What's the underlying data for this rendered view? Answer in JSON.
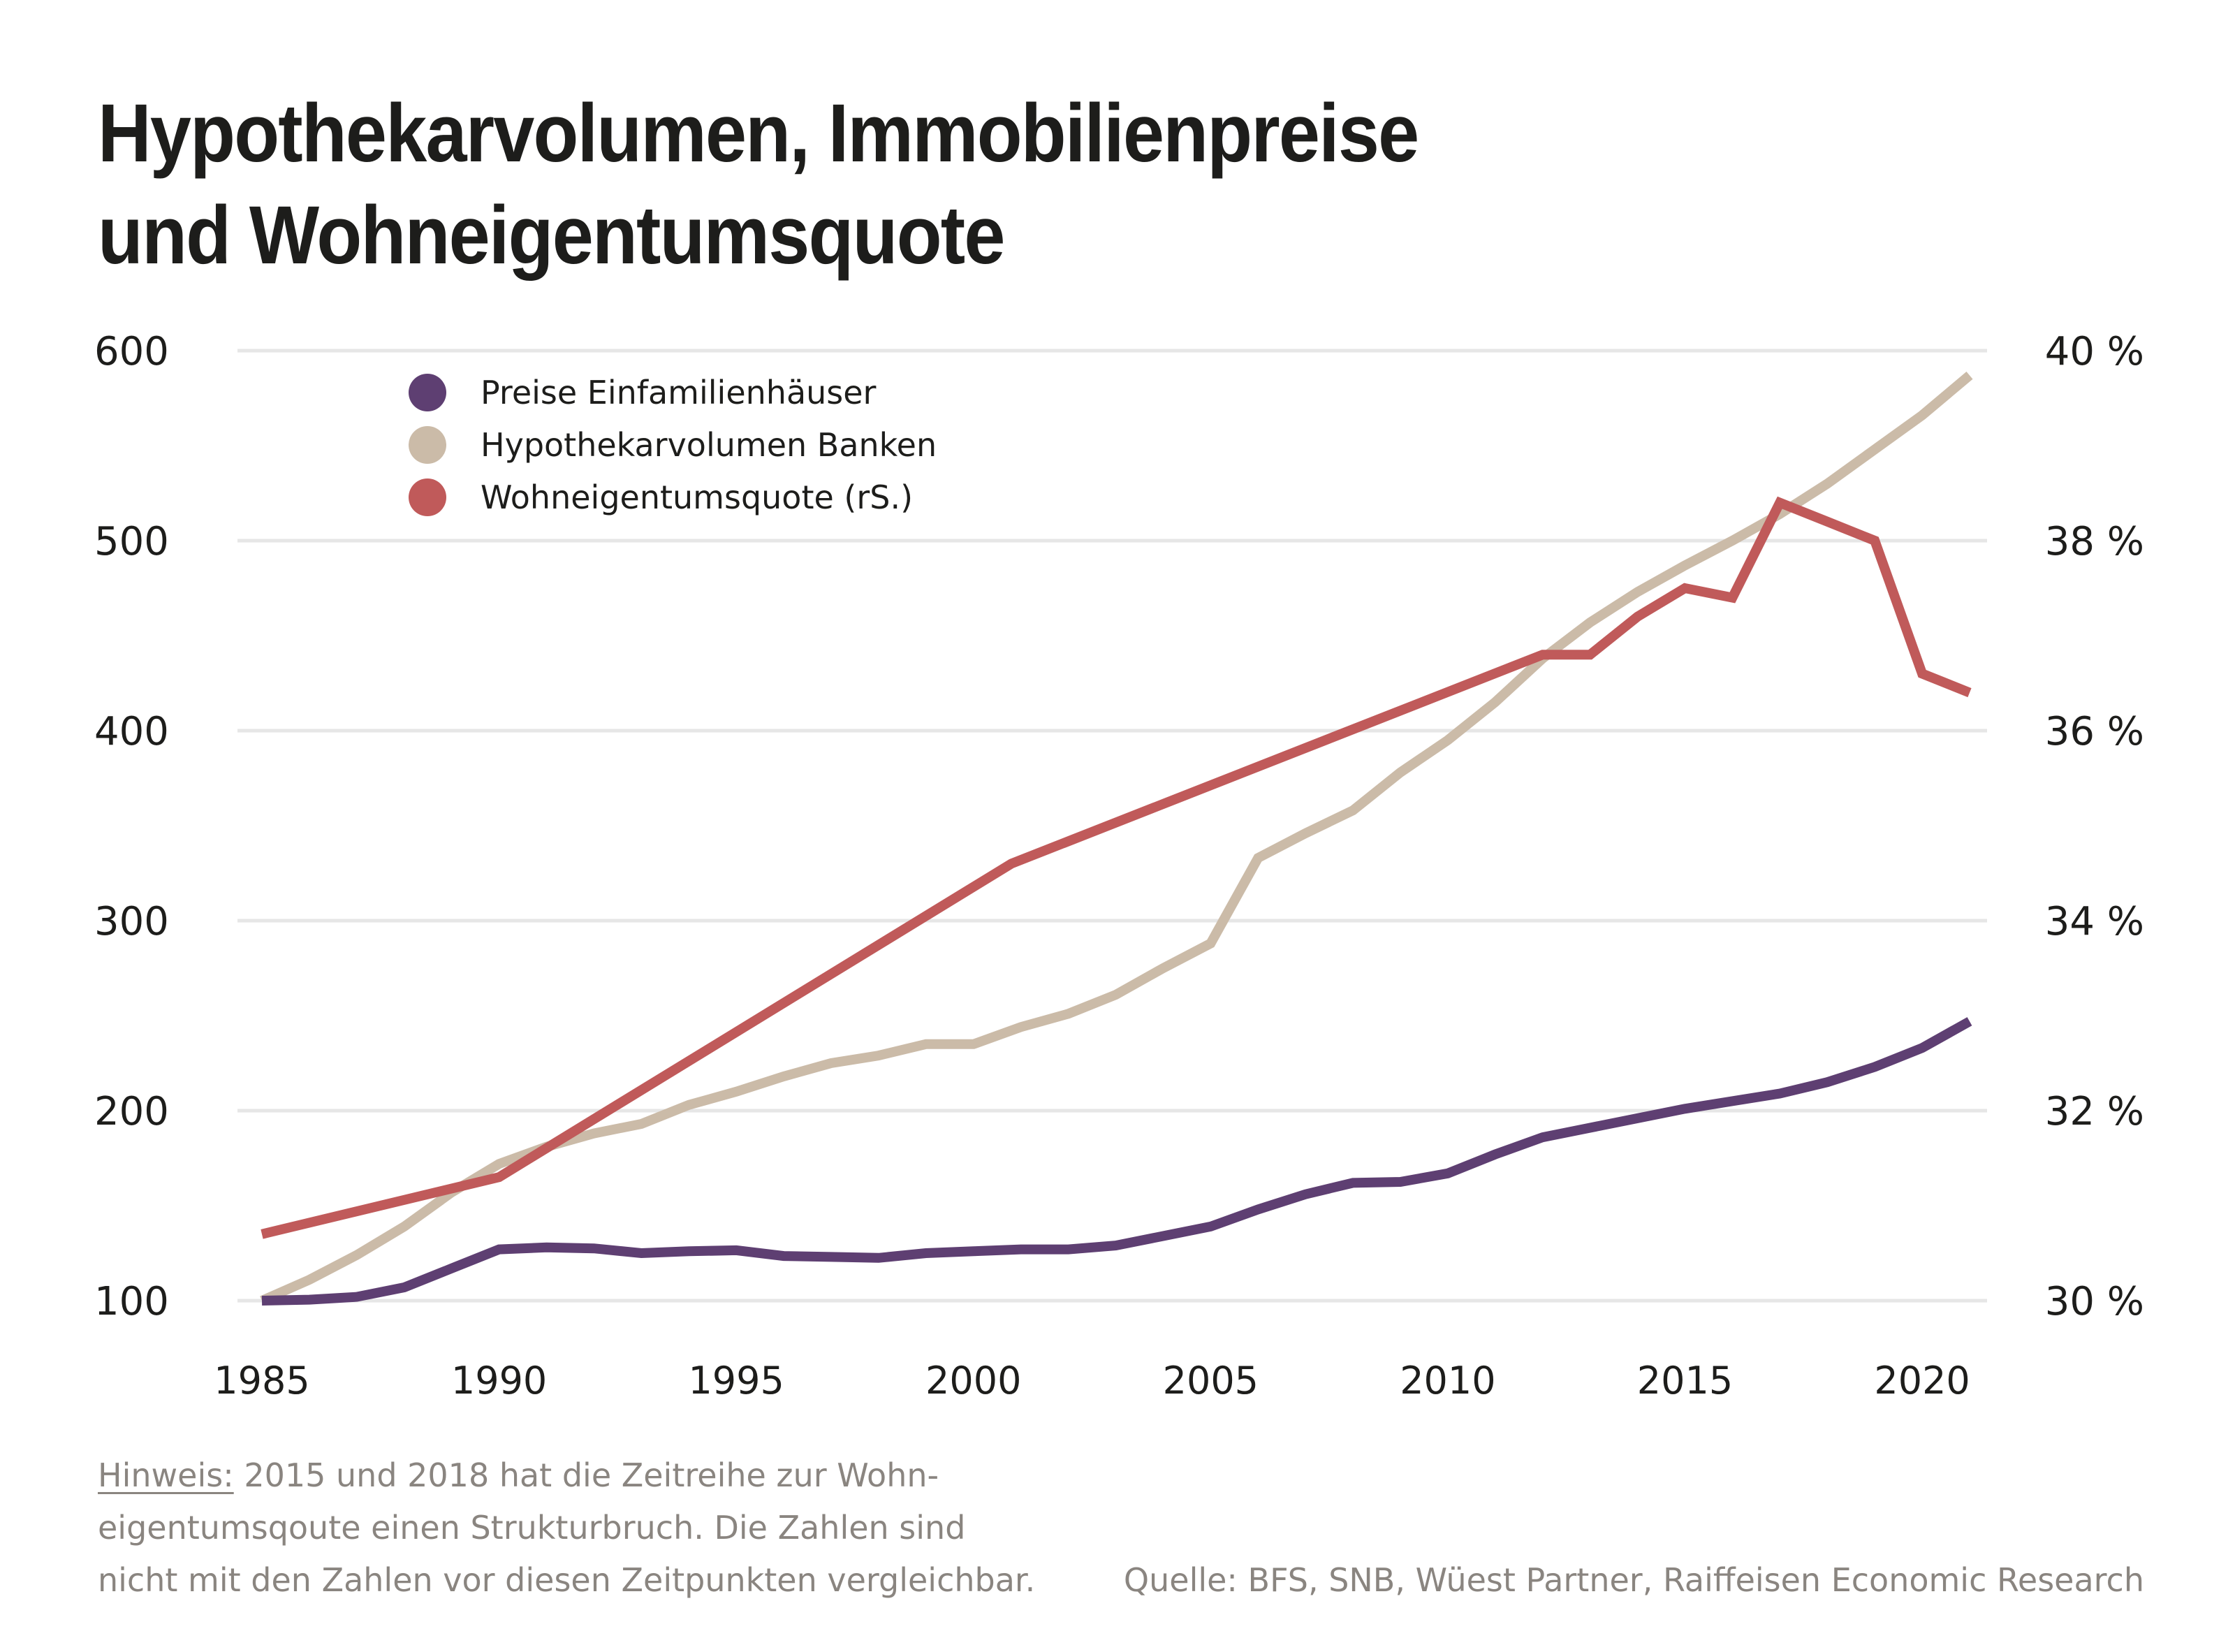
{
  "title": {
    "line1": "Hypothekarvolumen, Immobilienpreise",
    "line2": "und Wohneigentumsquote"
  },
  "footer": {
    "note_label": "Hinweis:",
    "note_lines": [
      " 2015 und 2018 hat die Zeitreihe zur Wohn-",
      "eigentumsqoute einen Strukturbruch. Die Zahlen sind",
      "nicht mit den Zahlen vor diesen Zeitpunkten vergleichbar."
    ],
    "source": "Quelle: BFS, SNB, Wüest Partner, Raiffeisen Economic Research"
  },
  "chart_data": {
    "type": "line",
    "title": "Hypothekarvolumen, Immobilienpreise und Wohneigentumsquote",
    "xlabel": "",
    "ylabel": "",
    "ylabel_right": "",
    "x_ticks": [
      "1985",
      "1990",
      "1995",
      "2000",
      "2005",
      "2010",
      "2015",
      "2020"
    ],
    "y_ticks_left": [
      "100",
      "200",
      "300",
      "400",
      "500",
      "600"
    ],
    "y_ticks_right": [
      "30 %",
      "32 %",
      "34 %",
      "36 %",
      "38 %",
      "40 %"
    ],
    "xlim": [
      1985,
      2021
    ],
    "ylim": [
      100,
      600
    ],
    "ylim_right": [
      30,
      40
    ],
    "grid": "horizontal",
    "legend_position": "top-left",
    "series": [
      {
        "name": "Preise Einfamilienhäuser",
        "axis": "left",
        "color": "#5e3f72",
        "x": [
          1985,
          1986,
          1987,
          1988,
          1989,
          1990,
          1991,
          1992,
          1993,
          1994,
          1995,
          1996,
          1997,
          1998,
          1999,
          2000,
          2001,
          2002,
          2003,
          2004,
          2005,
          2006,
          2007,
          2008,
          2009,
          2010,
          2011,
          2012,
          2013,
          2014,
          2015,
          2016,
          2017,
          2018,
          2019,
          2020,
          2021
        ],
        "values": [
          100,
          100.5,
          102,
          107,
          117,
          127,
          128,
          127.5,
          125,
          126,
          126.5,
          123.5,
          123,
          122.5,
          125,
          126,
          127,
          127,
          129,
          134,
          139,
          148,
          156,
          162,
          162.5,
          167,
          177,
          186,
          191,
          196,
          201,
          205,
          209,
          215,
          223,
          233,
          247
        ]
      },
      {
        "name": "Hypothekarvolumen Banken",
        "axis": "left",
        "color": "#cbbba8",
        "x": [
          1985,
          1986,
          1987,
          1988,
          1989,
          1990,
          1991,
          1992,
          1993,
          1994,
          1995,
          1996,
          1997,
          1998,
          1999,
          2000,
          2001,
          2002,
          2003,
          2004,
          2005,
          2006,
          2007,
          2008,
          2009,
          2010,
          2011,
          2012,
          2013,
          2014,
          2015,
          2016,
          2017,
          2018,
          2019,
          2020,
          2021
        ],
        "values": [
          100,
          111,
          124,
          139,
          157,
          172,
          181,
          188,
          193,
          203,
          210,
          218,
          225,
          229,
          235,
          235,
          244,
          251,
          261,
          275,
          288,
          333,
          346,
          358,
          378,
          395,
          415,
          438,
          457,
          473,
          487,
          500,
          514,
          530,
          548,
          566,
          587
        ]
      },
      {
        "name": "Wohneigentumsquote (rS.)",
        "axis": "right",
        "color": "#c05a5a",
        "x": [
          1985,
          1990,
          2000.8,
          2012,
          2013,
          2014,
          2015,
          2016,
          2017,
          2018,
          2019,
          2020,
          2021
        ],
        "values": [
          30.7,
          31.3,
          34.6,
          36.8,
          36.8,
          37.2,
          37.5,
          37.4,
          38.4,
          38.2,
          38.0,
          36.6,
          36.4
        ]
      }
    ]
  }
}
